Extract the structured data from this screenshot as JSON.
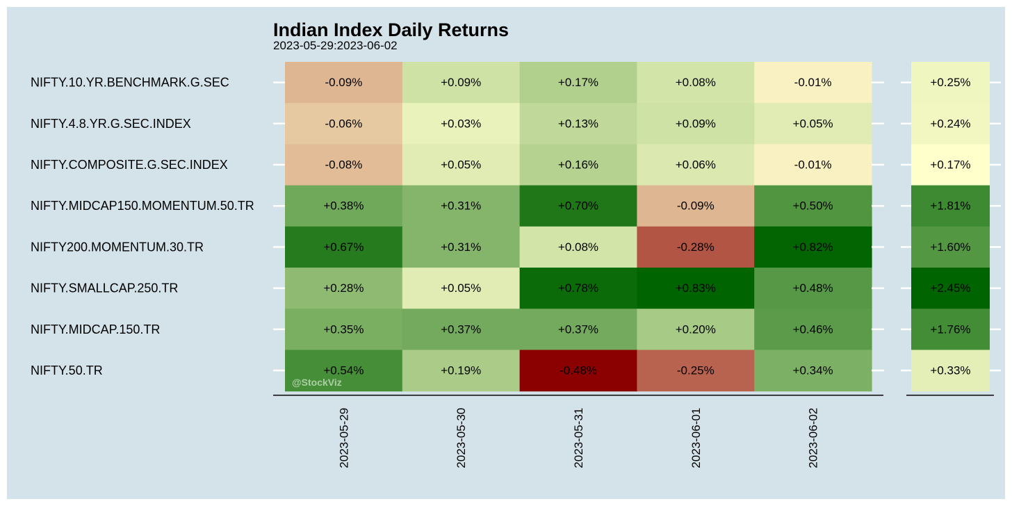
{
  "chart_data": {
    "type": "heatmap",
    "title": "Indian Index Daily Returns",
    "subtitle": "2023-05-29:2023-06-02",
    "rows": [
      "NIFTY.10.YR.BENCHMARK.G.SEC",
      "NIFTY.4.8.YR.G.SEC.INDEX",
      "NIFTY.COMPOSITE.G.SEC.INDEX",
      "NIFTY.MIDCAP150.MOMENTUM.50.TR",
      "NIFTY200.MOMENTUM.30.TR",
      "NIFTY.SMALLCAP.250.TR",
      "NIFTY.MIDCAP.150.TR",
      "NIFTY.50.TR"
    ],
    "columns": [
      "2023-05-29",
      "2023-05-30",
      "2023-05-31",
      "2023-06-01",
      "2023-06-02"
    ],
    "values": [
      [
        -0.09,
        0.09,
        0.17,
        0.08,
        -0.01
      ],
      [
        -0.06,
        0.03,
        0.13,
        0.09,
        0.05
      ],
      [
        -0.08,
        0.05,
        0.16,
        0.06,
        -0.01
      ],
      [
        0.38,
        0.31,
        0.7,
        -0.09,
        0.5
      ],
      [
        0.67,
        0.31,
        0.08,
        -0.28,
        0.82
      ],
      [
        0.28,
        0.05,
        0.78,
        0.83,
        0.48
      ],
      [
        0.35,
        0.37,
        0.37,
        0.2,
        0.46
      ],
      [
        0.54,
        0.19,
        -0.48,
        -0.25,
        0.34
      ]
    ],
    "labels": [
      [
        "-0.09%",
        "+0.09%",
        "+0.17%",
        "+0.08%",
        "-0.01%"
      ],
      [
        "-0.06%",
        "+0.03%",
        "+0.13%",
        "+0.09%",
        "+0.05%"
      ],
      [
        "-0.08%",
        "+0.05%",
        "+0.16%",
        "+0.06%",
        "-0.01%"
      ],
      [
        "+0.38%",
        "+0.31%",
        "+0.70%",
        "-0.09%",
        "+0.50%"
      ],
      [
        "+0.67%",
        "+0.31%",
        "+0.08%",
        "-0.28%",
        "+0.82%"
      ],
      [
        "+0.28%",
        "+0.05%",
        "+0.78%",
        "+0.83%",
        "+0.48%"
      ],
      [
        "+0.35%",
        "+0.37%",
        "+0.37%",
        "+0.20%",
        "+0.46%"
      ],
      [
        "+0.54%",
        "+0.19%",
        "-0.48%",
        "-0.25%",
        "+0.34%"
      ]
    ],
    "totals": [
      0.25,
      0.24,
      0.17,
      1.81,
      1.6,
      2.45,
      1.76,
      0.33
    ],
    "total_labels": [
      "+0.25%",
      "+0.24%",
      "+0.17%",
      "+1.81%",
      "+1.60%",
      "+2.45%",
      "+1.76%",
      "+0.33%"
    ],
    "colors": {
      "negative": "#8b0000",
      "neutral": "#ffffcc",
      "positive": "#006400",
      "background": "#d4e3ea"
    },
    "watermark": "@StockViz"
  }
}
